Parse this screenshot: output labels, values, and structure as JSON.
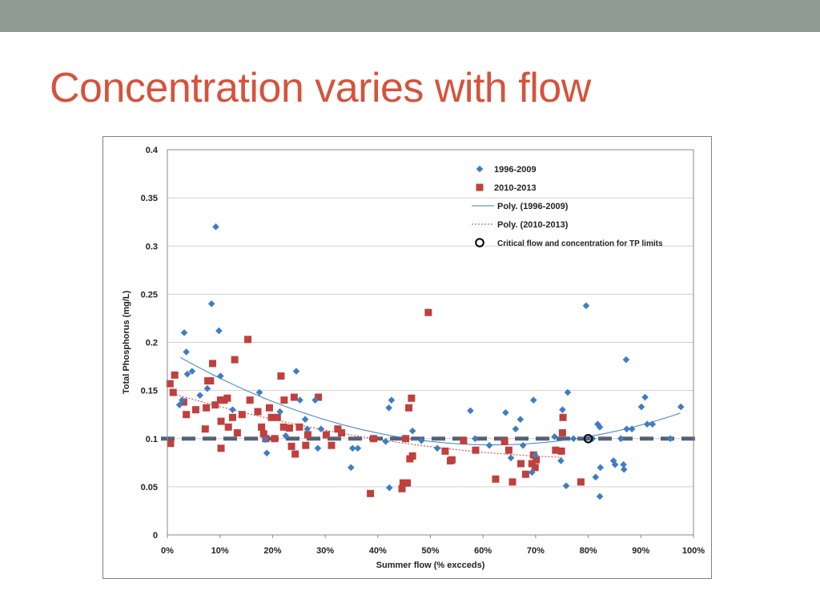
{
  "slide": {
    "title": "Concentration varies with flow"
  },
  "colors": {
    "series1": "#3f7dc2",
    "series2": "#c0403d",
    "critical_line": "#44546a",
    "title": "#d5533c",
    "top_bar": "#8f9c96"
  },
  "chart_data": {
    "type": "scatter",
    "xlabel": "Summer flow (% excceds)",
    "ylabel": "Total Phosphorus (mg/L)",
    "xlim": [
      0,
      100
    ],
    "ylim": [
      0,
      0.4
    ],
    "x_ticks": [
      "0%",
      "10%",
      "20%",
      "30%",
      "40%",
      "50%",
      "60%",
      "70%",
      "80%",
      "90%",
      "100%"
    ],
    "y_ticks": [
      "0",
      "0.05",
      "0.1",
      "0.15",
      "0.2",
      "0.25",
      "0.3",
      "0.35",
      "0.4"
    ],
    "grid": "horizontal",
    "legend_placement": "top-right",
    "legend": [
      "1996-2009",
      "2010-2013",
      "Poly. (1996-2009)",
      "Poly. (2010-2013)",
      "Critical flow and concentration for TP limits"
    ],
    "critical_concentration": 0.1,
    "critical_point": {
      "x": 80,
      "y": 0.1
    },
    "series": [
      {
        "name": "1996-2009",
        "marker": "diamond",
        "points": [
          [
            2.3,
            0.135
          ],
          [
            2.8,
            0.14
          ],
          [
            3.2,
            0.21
          ],
          [
            3.6,
            0.19
          ],
          [
            3.8,
            0.167
          ],
          [
            4.7,
            0.17
          ],
          [
            6.2,
            0.145
          ],
          [
            7.6,
            0.152
          ],
          [
            8.4,
            0.24
          ],
          [
            9.2,
            0.32
          ],
          [
            9.8,
            0.212
          ],
          [
            10.1,
            0.165
          ],
          [
            12.4,
            0.13
          ],
          [
            17.5,
            0.148
          ],
          [
            18.6,
            0.099
          ],
          [
            18.9,
            0.085
          ],
          [
            21.4,
            0.128
          ],
          [
            22.5,
            0.103
          ],
          [
            24.5,
            0.17
          ],
          [
            25.2,
            0.14
          ],
          [
            26.2,
            0.12
          ],
          [
            26.6,
            0.11
          ],
          [
            28.1,
            0.14
          ],
          [
            28.6,
            0.09
          ],
          [
            29.2,
            0.11
          ],
          [
            34.9,
            0.07
          ],
          [
            35.2,
            0.09
          ],
          [
            36.2,
            0.09
          ],
          [
            41.5,
            0.097
          ],
          [
            42.1,
            0.132
          ],
          [
            42.2,
            0.049
          ],
          [
            42.6,
            0.14
          ],
          [
            46.6,
            0.108
          ],
          [
            48.3,
            0.098
          ],
          [
            51.3,
            0.09
          ],
          [
            57.6,
            0.129
          ],
          [
            58.5,
            0.1
          ],
          [
            61.2,
            0.093
          ],
          [
            64.3,
            0.127
          ],
          [
            65.3,
            0.08
          ],
          [
            66.2,
            0.11
          ],
          [
            67.1,
            0.12
          ],
          [
            67.6,
            0.093
          ],
          [
            69.3,
            0.065
          ],
          [
            69.6,
            0.14
          ],
          [
            69.9,
            0.083
          ],
          [
            73.6,
            0.102
          ],
          [
            74.8,
            0.077
          ],
          [
            75.1,
            0.13
          ],
          [
            75.8,
            0.051
          ],
          [
            76.1,
            0.148
          ],
          [
            77.2,
            0.1
          ],
          [
            79.6,
            0.238
          ],
          [
            80.8,
            0.1
          ],
          [
            81.4,
            0.06
          ],
          [
            81.8,
            0.115
          ],
          [
            82.2,
            0.112
          ],
          [
            82.2,
            0.04
          ],
          [
            82.3,
            0.07
          ],
          [
            84.8,
            0.077
          ],
          [
            85.1,
            0.073
          ],
          [
            86.2,
            0.1
          ],
          [
            86.7,
            0.073
          ],
          [
            86.8,
            0.068
          ],
          [
            87.2,
            0.182
          ],
          [
            87.3,
            0.11
          ],
          [
            88.3,
            0.11
          ],
          [
            90.1,
            0.133
          ],
          [
            90.8,
            0.143
          ],
          [
            91.2,
            0.115
          ],
          [
            92.2,
            0.115
          ],
          [
            95.6,
            0.1
          ],
          [
            97.6,
            0.133
          ]
        ]
      },
      {
        "name": "2010-2013",
        "marker": "square",
        "points": [
          [
            0.5,
            0.157
          ],
          [
            0.6,
            0.095
          ],
          [
            1.1,
            0.148
          ],
          [
            1.4,
            0.166
          ],
          [
            3.1,
            0.138
          ],
          [
            3.6,
            0.125
          ],
          [
            5.4,
            0.13
          ],
          [
            7.2,
            0.11
          ],
          [
            7.4,
            0.132
          ],
          [
            7.7,
            0.16
          ],
          [
            8.2,
            0.16
          ],
          [
            8.6,
            0.178
          ],
          [
            9.1,
            0.135
          ],
          [
            10.1,
            0.14
          ],
          [
            10.2,
            0.118
          ],
          [
            10.2,
            0.09
          ],
          [
            10.8,
            0.14
          ],
          [
            11.4,
            0.142
          ],
          [
            11.6,
            0.112
          ],
          [
            12.4,
            0.122
          ],
          [
            12.8,
            0.182
          ],
          [
            13.3,
            0.106
          ],
          [
            14.2,
            0.125
          ],
          [
            15.3,
            0.203
          ],
          [
            15.7,
            0.14
          ],
          [
            17.2,
            0.128
          ],
          [
            17.9,
            0.112
          ],
          [
            18.3,
            0.105
          ],
          [
            18.7,
            0.1
          ],
          [
            19.4,
            0.132
          ],
          [
            19.8,
            0.122
          ],
          [
            20.4,
            0.1
          ],
          [
            20.9,
            0.122
          ],
          [
            21.6,
            0.165
          ],
          [
            22.1,
            0.112
          ],
          [
            22.2,
            0.14
          ],
          [
            23.2,
            0.111
          ],
          [
            23.6,
            0.092
          ],
          [
            24.1,
            0.143
          ],
          [
            24.3,
            0.084
          ],
          [
            25.1,
            0.112
          ],
          [
            26.3,
            0.093
          ],
          [
            26.7,
            0.104
          ],
          [
            28.7,
            0.143
          ],
          [
            30.2,
            0.104
          ],
          [
            31.2,
            0.093
          ],
          [
            32.4,
            0.11
          ],
          [
            33.1,
            0.106
          ],
          [
            38.6,
            0.043
          ],
          [
            39.2,
            0.1
          ],
          [
            44.6,
            0.048
          ],
          [
            44.8,
            0.054
          ],
          [
            45.3,
            0.1
          ],
          [
            45.6,
            0.054
          ],
          [
            45.9,
            0.132
          ],
          [
            46.1,
            0.079
          ],
          [
            46.4,
            0.142
          ],
          [
            46.6,
            0.082
          ],
          [
            49.6,
            0.231
          ],
          [
            52.8,
            0.087
          ],
          [
            53.8,
            0.077
          ],
          [
            54.1,
            0.078
          ],
          [
            56.3,
            0.098
          ],
          [
            58.6,
            0.088
          ],
          [
            62.4,
            0.058
          ],
          [
            64.1,
            0.097
          ],
          [
            64.9,
            0.088
          ],
          [
            65.6,
            0.055
          ],
          [
            67.2,
            0.074
          ],
          [
            68.1,
            0.063
          ],
          [
            69.3,
            0.074
          ],
          [
            69.6,
            0.083
          ],
          [
            69.9,
            0.07
          ],
          [
            70.1,
            0.078
          ],
          [
            73.8,
            0.088
          ],
          [
            74.9,
            0.087
          ],
          [
            75.1,
            0.106
          ],
          [
            75.2,
            0.122
          ],
          [
            78.6,
            0.055
          ]
        ]
      },
      {
        "name": "Poly. (1996-2009)",
        "type": "trendline",
        "degree": 2,
        "x_range": [
          2.5,
          97.5
        ]
      },
      {
        "name": "Poly. (2010-2013)",
        "type": "trendline",
        "degree": 2,
        "x_range": [
          0.5,
          75
        ]
      }
    ]
  }
}
